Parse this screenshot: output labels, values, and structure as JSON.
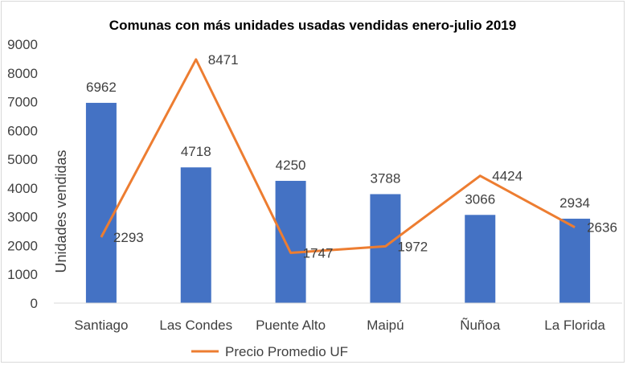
{
  "chart_data": {
    "type": "bar",
    "title": "Comunas con más unidades usadas vendidas enero-julio 2019",
    "ylabel": "Unidades vendidas",
    "xlabel": "",
    "ylim": [
      0,
      9000
    ],
    "ytick_step": 1000,
    "categories": [
      "Santiago",
      "Las Condes",
      "Puente Alto",
      "Maipú",
      "Ñuñoa",
      "La Florida"
    ],
    "series": [
      {
        "type": "bar",
        "values": [
          6962,
          4718,
          4250,
          3788,
          3066,
          2934
        ],
        "color": "#4472C4"
      },
      {
        "type": "line",
        "name": "Precio Promedio UF",
        "values": [
          2293,
          8471,
          1747,
          1972,
          4424,
          2636
        ],
        "color": "#ED7D31"
      }
    ],
    "legend": {
      "position": "bottom",
      "entries": [
        "Precio Promedio UF"
      ]
    },
    "grid": false
  }
}
